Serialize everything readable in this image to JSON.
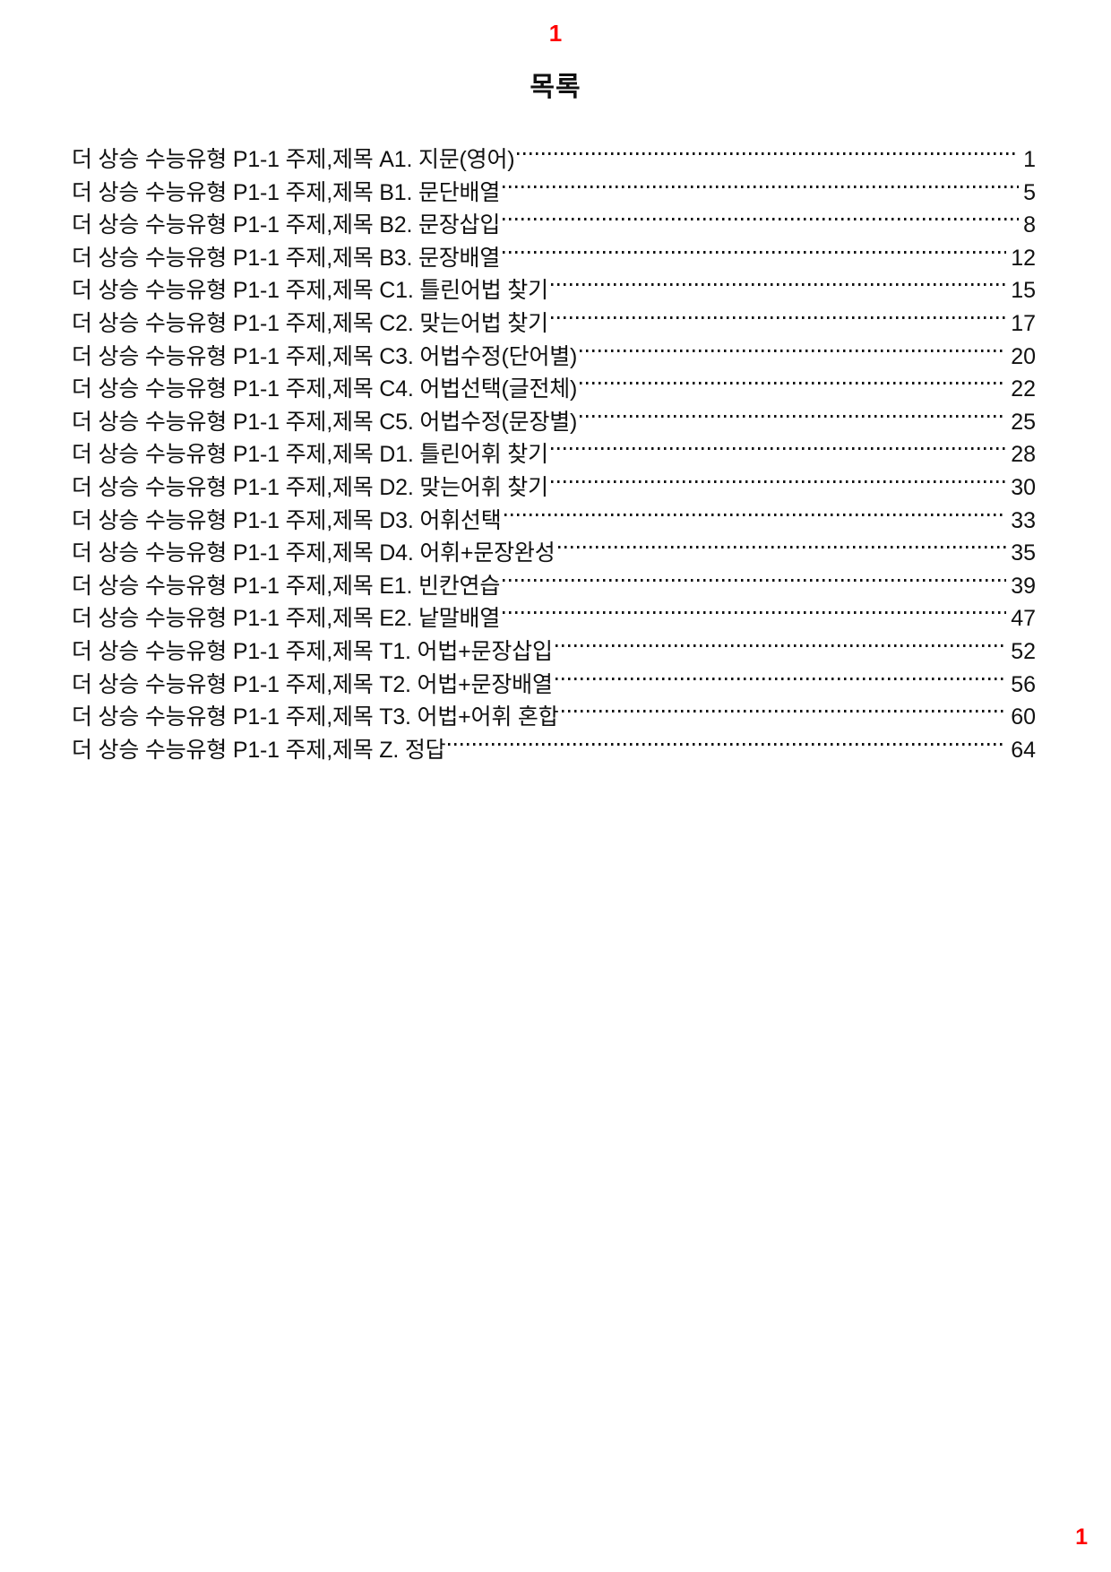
{
  "page": {
    "top_page_indicator": "1",
    "title": "목록",
    "bottom_page_number": "1",
    "accent_red": "#ff0000",
    "text_color": "#111111"
  },
  "toc": {
    "entries": [
      {
        "title": "더 상승 수능유형 P1-1 주제,제목 A1. 지문(영어)",
        "page": "1"
      },
      {
        "title": "더 상승 수능유형 P1-1 주제,제목 B1. 문단배열",
        "page": "5"
      },
      {
        "title": "더 상승 수능유형 P1-1 주제,제목 B2. 문장삽입",
        "page": "8"
      },
      {
        "title": "더 상승 수능유형 P1-1 주제,제목 B3. 문장배열",
        "page": "12"
      },
      {
        "title": "더 상승 수능유형 P1-1 주제,제목 C1. 틀린어법 찾기",
        "page": "15"
      },
      {
        "title": "더 상승 수능유형 P1-1 주제,제목 C2. 맞는어법 찾기",
        "page": "17"
      },
      {
        "title": "더 상승 수능유형 P1-1 주제,제목 C3. 어법수정(단어별)",
        "page": "20"
      },
      {
        "title": "더 상승 수능유형 P1-1 주제,제목 C4. 어법선택(글전체)",
        "page": "22"
      },
      {
        "title": "더 상승 수능유형 P1-1 주제,제목 C5. 어법수정(문장별)",
        "page": "25"
      },
      {
        "title": "더 상승 수능유형 P1-1 주제,제목 D1. 틀린어휘 찾기",
        "page": "28"
      },
      {
        "title": "더 상승 수능유형 P1-1 주제,제목 D2. 맞는어휘 찾기",
        "page": "30"
      },
      {
        "title": "더 상승 수능유형 P1-1 주제,제목 D3. 어휘선택",
        "page": "33"
      },
      {
        "title": "더 상승 수능유형 P1-1 주제,제목 D4. 어휘+문장완성",
        "page": "35"
      },
      {
        "title": "더 상승 수능유형 P1-1 주제,제목 E1. 빈칸연습",
        "page": "39"
      },
      {
        "title": "더 상승 수능유형 P1-1 주제,제목 E2. 낱말배열",
        "page": "47"
      },
      {
        "title": "더 상승 수능유형 P1-1 주제,제목 T1. 어법+문장삽입",
        "page": "52"
      },
      {
        "title": "더 상승 수능유형 P1-1 주제,제목 T2. 어법+문장배열",
        "page": "56"
      },
      {
        "title": "더 상승 수능유형 P1-1 주제,제목 T3. 어법+어휘 혼합",
        "page": "60"
      },
      {
        "title": "더 상승 수능유형 P1-1 주제,제목 Z. 정답",
        "page": "64"
      }
    ]
  }
}
